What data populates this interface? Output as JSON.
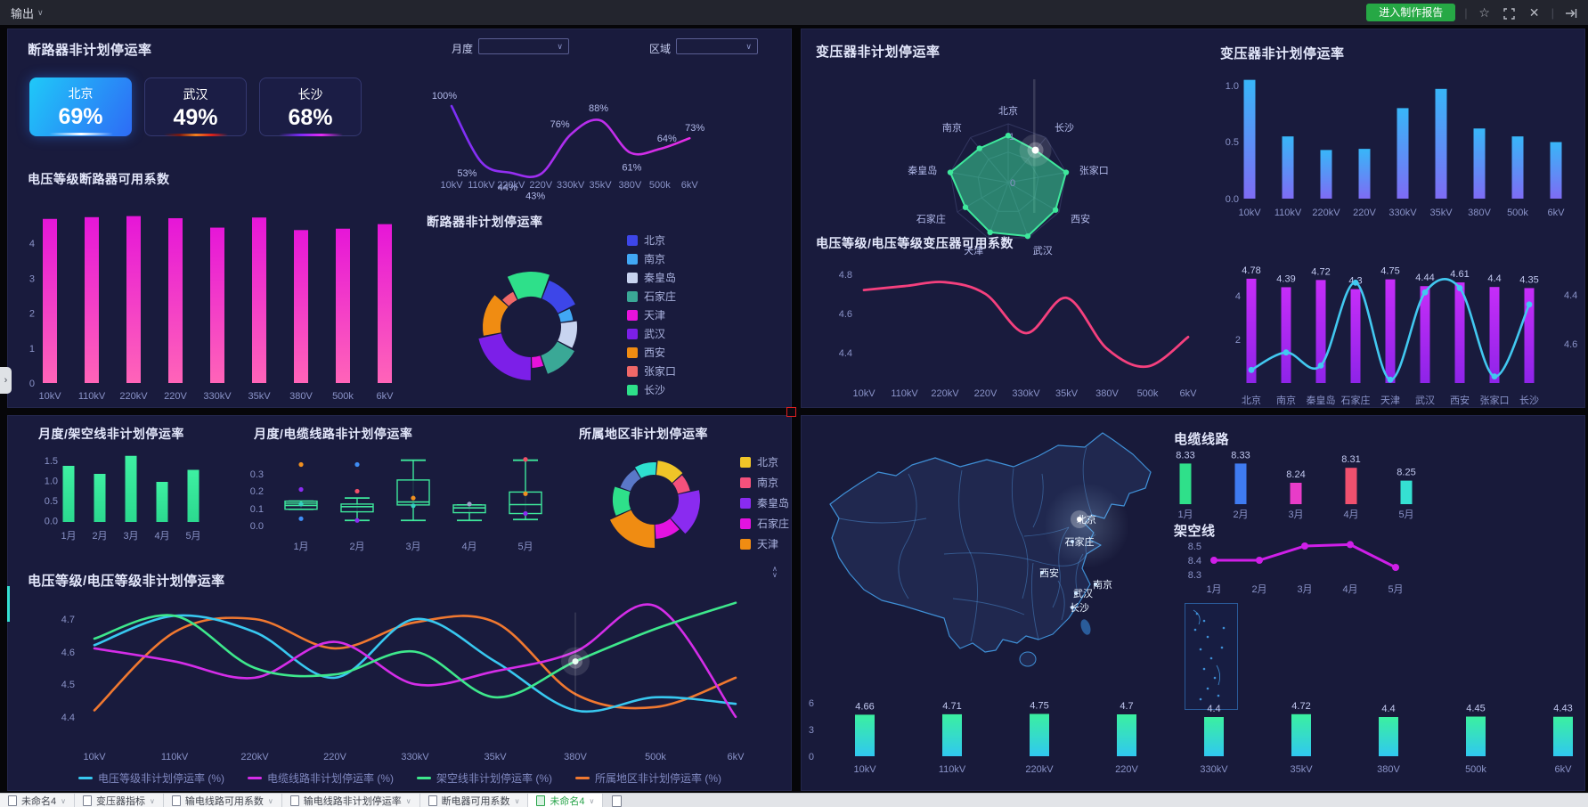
{
  "topbar": {
    "menu_label": "输出",
    "report_button": "进入制作报告",
    "icons": [
      "star-icon",
      "fullscreen-icon",
      "close-icon",
      "exit-icon"
    ]
  },
  "filters": {
    "month_label": "月度",
    "month_value": "",
    "region_label": "区域",
    "region_value": ""
  },
  "panels": {
    "breaker": {
      "title": "断路器非计划停运率",
      "cards": [
        {
          "city": "北京",
          "value": "69%"
        },
        {
          "city": "武汉",
          "value": "49%"
        },
        {
          "city": "长沙",
          "value": "68%"
        }
      ],
      "bar_title": "电压等级断路器可用系数",
      "donut_title": "断路器非计划停运率"
    },
    "transformer": {
      "radar_title": "变压器非计划停运率",
      "bar_title": "变压器非计划停运率",
      "availability_title": "电压等级/电压等级变压器可用系数"
    },
    "monthly": {
      "overhead_title": "月度/架空线非计划停运率",
      "cable_title": "月度/电缆线路非计划停运率",
      "region_title": "所属地区非计划停运率",
      "voltage_title": "电压等级/电压等级非计划停运率"
    },
    "map": {
      "cable_title": "电缆线路",
      "overhead_title": "架空线",
      "cities": [
        "北京",
        "石家庄",
        "西安",
        "南京",
        "武汉",
        "长沙"
      ]
    }
  },
  "tabbar": {
    "tabs": [
      {
        "label": "未命名4",
        "active": false
      },
      {
        "label": "变压器指标",
        "active": false
      },
      {
        "label": "输电线路可用系数",
        "active": false
      },
      {
        "label": "输电线路非计划停运率",
        "active": false
      },
      {
        "label": "断电器可用系数",
        "active": false
      },
      {
        "label": "未命名4",
        "active": true
      }
    ]
  },
  "chart_data": [
    {
      "id": "breaker-rate-line",
      "type": "line",
      "title": "断路器非计划停运率",
      "categories": [
        "10kV",
        "110kV",
        "220kV",
        "220V",
        "330kV",
        "35kV",
        "380V",
        "500k",
        "6kV"
      ],
      "values": [
        100,
        53,
        44,
        43,
        76,
        88,
        61,
        64,
        73
      ],
      "labels": [
        "100%",
        "53%",
        "44%",
        "43%",
        "76%",
        "88%",
        "61%",
        "64%",
        "73%"
      ],
      "colors": {
        "start": "#7b2ff7",
        "end": "#e52de5"
      }
    },
    {
      "id": "breaker-voltage-bars",
      "type": "bar",
      "title": "电压等级断路器可用系数",
      "categories": [
        "10kV",
        "110kV",
        "220kV",
        "220V",
        "330kV",
        "35kV",
        "380V",
        "500k",
        "6kV"
      ],
      "values": [
        4.7,
        4.75,
        4.78,
        4.72,
        4.45,
        4.74,
        4.38,
        4.42,
        4.55
      ],
      "yticks": [
        0,
        1,
        2,
        3,
        4
      ],
      "colors": {
        "top": "#e616d8",
        "bottom": "#ff64b8"
      }
    },
    {
      "id": "breaker-donut",
      "type": "pie",
      "title": "断路器非计划停运率",
      "legend": [
        "北京",
        "南京",
        "秦皇岛",
        "石家庄",
        "天津",
        "武汉",
        "西安",
        "张家口",
        "长沙"
      ],
      "legend_colors": [
        "#3d46e8",
        "#41a8f5",
        "#c8d4f0",
        "#3aa896",
        "#e812dc",
        "#7c1fe8",
        "#f08c12",
        "#f06868",
        "#2ee08a"
      ],
      "segments": [
        {
          "name": "长沙",
          "share": 13,
          "radius": 62,
          "color": "#2ee08a"
        },
        {
          "name": "北京",
          "share": 12,
          "radius": 56,
          "color": "#3d46e8"
        },
        {
          "name": "南京",
          "share": 5,
          "radius": 48,
          "color": "#41a8f5"
        },
        {
          "name": "秦皇岛",
          "share": 10,
          "radius": 52,
          "color": "#c8d4f0"
        },
        {
          "name": "石家庄",
          "share": 12,
          "radius": 56,
          "color": "#3aa896"
        },
        {
          "name": "天津",
          "share": 5,
          "radius": 46,
          "color": "#e812dc"
        },
        {
          "name": "武汉",
          "share": 22,
          "radius": 60,
          "color": "#7c1fe8"
        },
        {
          "name": "西安",
          "share": 15,
          "radius": 54,
          "color": "#f08c12"
        },
        {
          "name": "张家口",
          "share": 6,
          "radius": 44,
          "color": "#f06868"
        }
      ]
    },
    {
      "id": "transformer-radar",
      "type": "radar",
      "title": "变压器非计划停运率",
      "categories": [
        "北京",
        "长沙",
        "张家口",
        "西安",
        "武汉",
        "天津",
        "石家庄",
        "秦皇岛",
        "南京"
      ],
      "values": [
        0.8,
        0.72,
        1.0,
        0.93,
        0.97,
        0.9,
        0.84,
        1.0,
        0.76
      ],
      "ticks": [
        "1",
        "0"
      ],
      "colors": {
        "fill": "rgba(62,232,160,0.5)",
        "stroke": "#3ee89c"
      }
    },
    {
      "id": "transformer-bars",
      "type": "bar",
      "title": "变压器非计划停运率",
      "categories": [
        "10kV",
        "110kV",
        "220kV",
        "220V",
        "330kV",
        "35kV",
        "380V",
        "500k",
        "6kV"
      ],
      "values": [
        1.05,
        0.55,
        0.43,
        0.44,
        0.8,
        0.97,
        0.62,
        0.55,
        0.5
      ],
      "yticks": [
        "1.0",
        "0.5",
        "0.0"
      ],
      "colors": {
        "top": "#38b6f8",
        "bottom": "#7e6cf4"
      }
    },
    {
      "id": "transformer-availability-line",
      "type": "line",
      "title": "电压等级/电压等级变压器可用系数",
      "categories": [
        "10kV",
        "110kV",
        "220kV",
        "220V",
        "330kV",
        "35kV",
        "380V",
        "500k",
        "6kV"
      ],
      "values": [
        4.72,
        4.74,
        4.76,
        4.7,
        4.5,
        4.68,
        4.42,
        4.33,
        4.48
      ],
      "yticks": [
        "4.8",
        "4.6",
        "4.4"
      ],
      "colors": {
        "stroke": "#f5407e"
      }
    },
    {
      "id": "transformer-availability-combo",
      "type": "bar",
      "title": "电压等级/电压等级变压器可用系数",
      "categories": [
        "北京",
        "南京",
        "秦皇岛",
        "石家庄",
        "天津",
        "武汉",
        "西安",
        "张家口",
        "长沙"
      ],
      "series": [
        {
          "name": "bars",
          "values": [
            4.78,
            4.39,
            4.72,
            4.3,
            4.75,
            4.44,
            4.61,
            4.4,
            4.35
          ]
        },
        {
          "name": "line",
          "values": [
            0.6,
            1.4,
            0.8,
            4.6,
            0.15,
            4.15,
            4.35,
            0.3,
            3.6
          ]
        }
      ],
      "bar_labels": [
        "4.78",
        "4.39",
        "4.72",
        "4.3",
        "4.75",
        "4.44",
        "4.61",
        "4.4",
        "4.35"
      ],
      "left_ticks": [
        "4",
        "2"
      ],
      "right_ticks": [
        "4.4",
        "4.6"
      ],
      "colors": {
        "bar_top": "#c62df8",
        "bar_bottom": "#8e24e8",
        "line": "#42c8f0"
      }
    },
    {
      "id": "overhead-monthly-bars",
      "type": "bar",
      "title": "月度/架空线非计划停运率",
      "categories": [
        "1月",
        "2月",
        "3月",
        "4月",
        "5月"
      ],
      "values": [
        1.4,
        1.2,
        1.65,
        1.0,
        1.3
      ],
      "yticks": [
        "1.5",
        "1.0",
        "0.5",
        "0.0"
      ],
      "colors": {
        "top": "#3ef0a2",
        "bottom": "#2bd98f"
      }
    },
    {
      "id": "cable-monthly-box",
      "type": "table",
      "title": "月度/电缆线路非计划停运率",
      "categories": [
        "1月",
        "2月",
        "3月",
        "4月",
        "5月"
      ],
      "yticks": [
        "0.3",
        "0.2",
        "0.1",
        "0.0"
      ],
      "boxes": [
        {
          "q1": 0.1,
          "q3": 0.147,
          "median": 0.122,
          "extra": 0.135,
          "lo": 0.1,
          "hi": 0.147,
          "dots": [
            {
              "v": 0.36,
              "c": "#f09020"
            },
            {
              "v": 0.215,
              "c": "#8a2bf0"
            },
            {
              "v": 0.13,
              "c": "#35d0c0"
            },
            {
              "v": 0.045,
              "c": "#3f8df5"
            }
          ]
        },
        {
          "q1": 0.085,
          "q3": 0.13,
          "median": 0.115,
          "lo": 0.035,
          "hi": 0.165,
          "dots": [
            {
              "v": 0.36,
              "c": "#3f8df5"
            },
            {
              "v": 0.205,
              "c": "#f05068"
            },
            {
              "v": 0.035,
              "c": "#8a2bf0"
            }
          ]
        },
        {
          "q1": 0.125,
          "q3": 0.27,
          "median": 0.142,
          "lo": 0.035,
          "hi": 0.385,
          "dots": [
            {
              "v": 0.165,
              "c": "#f09020"
            },
            {
              "v": 0.12,
              "c": "#35d0c0"
            }
          ]
        },
        {
          "q1": 0.08,
          "q3": 0.125,
          "median": 0.108,
          "lo": 0.035,
          "hi": 0.125,
          "dots": [
            {
              "v": 0.13,
              "c": "#9aa2c8"
            }
          ]
        },
        {
          "q1": 0.075,
          "q3": 0.2,
          "median": 0.127,
          "lo": 0.04,
          "hi": 0.385,
          "dots": [
            {
              "v": 0.39,
              "c": "#f05068"
            },
            {
              "v": 0.19,
              "c": "#f09020"
            },
            {
              "v": 0.075,
              "c": "#8a2bf0"
            }
          ]
        }
      ],
      "colors": {
        "box": "#3ee89c"
      }
    },
    {
      "id": "region-donut",
      "type": "pie",
      "title": "所属地区非计划停运率",
      "legend": [
        "北京",
        "南京",
        "秦皇岛",
        "石家庄",
        "天津"
      ],
      "legend_colors": [
        "#f0c528",
        "#f5517c",
        "#8a2bf0",
        "#e313e0",
        "#f08c12"
      ],
      "segments": [
        {
          "share": 10,
          "radius": 42,
          "color": "#2ee0d0"
        },
        {
          "share": 12,
          "radius": 44,
          "color": "#f0c528"
        },
        {
          "share": 8,
          "radius": 42,
          "color": "#f5517c"
        },
        {
          "share": 17,
          "radius": 52,
          "color": "#8a2bf0"
        },
        {
          "share": 11,
          "radius": 44,
          "color": "#e313e0"
        },
        {
          "share": 19,
          "radius": 54,
          "color": "#f08c12"
        },
        {
          "share": 12,
          "radius": 46,
          "color": "#2ee08a"
        },
        {
          "share": 11,
          "radius": 40,
          "color": "#5a78c8"
        }
      ]
    },
    {
      "id": "voltage-rate-multiline",
      "type": "line",
      "title": "电压等级/电压等级非计划停运率",
      "categories": [
        "10kV",
        "110kV",
        "220kV",
        "220V",
        "330kV",
        "35kV",
        "380V",
        "500k",
        "6kV"
      ],
      "yticks": [
        "4.7",
        "4.6",
        "4.5",
        "4.4"
      ],
      "series": [
        {
          "name": "电压等级非计划停运率 (%)",
          "color": "#38c8f0",
          "values": [
            4.62,
            4.71,
            4.66,
            4.52,
            4.7,
            4.57,
            4.42,
            4.46,
            4.44
          ]
        },
        {
          "name": "电缆线路非计划停运率 (%)",
          "color": "#d42de8",
          "values": [
            4.61,
            4.57,
            4.52,
            4.63,
            4.5,
            4.54,
            4.6,
            4.74,
            4.4
          ]
        },
        {
          "name": "架空线非计划停运率 (%)",
          "color": "#3ee88c",
          "values": [
            4.64,
            4.71,
            4.55,
            4.53,
            4.6,
            4.46,
            4.57,
            4.67,
            4.75
          ]
        },
        {
          "name": "所属地区非计划停运率 (%)",
          "color": "#f07830",
          "values": [
            4.42,
            4.66,
            4.7,
            4.61,
            4.69,
            4.69,
            4.47,
            4.43,
            4.52
          ]
        }
      ],
      "highlight": {
        "series": 2,
        "index": 6
      }
    },
    {
      "id": "cable-line-bars",
      "type": "bar",
      "title": "电缆线路",
      "categories": [
        "1月",
        "2月",
        "3月",
        "4月",
        "5月"
      ],
      "values": [
        8.33,
        8.33,
        8.24,
        8.31,
        8.25
      ],
      "labels": [
        "8.33",
        "8.33",
        "8.24",
        "8.31",
        "8.25"
      ],
      "bar_colors": [
        "#2fe08a",
        "#3f7bf0",
        "#e83cc8",
        "#f0506e",
        "#35e0d2"
      ]
    },
    {
      "id": "overhead-line",
      "type": "line",
      "title": "架空线",
      "categories": [
        "1月",
        "2月",
        "3月",
        "4月",
        "5月"
      ],
      "values": [
        8.4,
        8.4,
        8.5,
        8.51,
        8.35
      ],
      "yticks": [
        "8.5",
        "8.4",
        "8.3"
      ],
      "colors": {
        "stroke": "#cf1fe8"
      }
    },
    {
      "id": "voltage-availability-bars",
      "type": "bar",
      "title": "",
      "categories": [
        "10kV",
        "110kV",
        "220kV",
        "220V",
        "330kV",
        "35kV",
        "380V",
        "500k",
        "6kV"
      ],
      "values": [
        4.66,
        4.71,
        4.75,
        4.7,
        4.4,
        4.72,
        4.4,
        4.45,
        4.43
      ],
      "labels": [
        "4.66",
        "4.71",
        "4.75",
        "4.7",
        "4.4",
        "4.72",
        "4.4",
        "4.45",
        "4.43"
      ],
      "yticks": [
        "6",
        "3",
        "0"
      ],
      "colors": {
        "top": "#3bf0a0",
        "bottom": "#30c8f0"
      }
    }
  ]
}
